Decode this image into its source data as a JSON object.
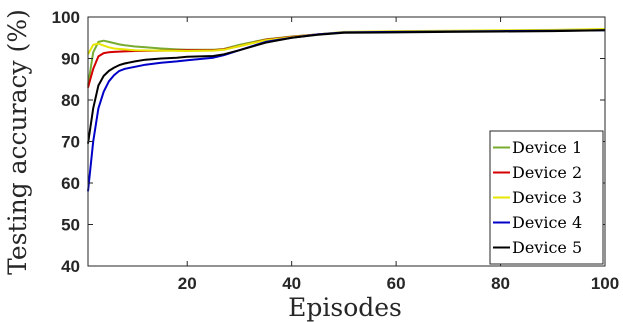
{
  "chart_data": {
    "type": "line",
    "xlabel": "Episodes",
    "ylabel": "Testing accuracy (%)",
    "xlim": [
      1,
      100
    ],
    "ylim": [
      40,
      100
    ],
    "xticks": [
      20,
      40,
      60,
      80,
      100
    ],
    "yticks": [
      40,
      50,
      60,
      70,
      80,
      90,
      100
    ],
    "grid": false,
    "legend_position": "bottom-right",
    "series": [
      {
        "name": "Device 1",
        "color": "#77ac30",
        "points": [
          [
            1,
            83.5
          ],
          [
            2,
            91.5
          ],
          [
            3,
            94.0
          ],
          [
            4,
            94.3
          ],
          [
            5,
            94.0
          ],
          [
            6,
            93.7
          ],
          [
            7,
            93.4
          ],
          [
            8,
            93.2
          ],
          [
            10,
            92.9
          ],
          [
            12,
            92.7
          ],
          [
            15,
            92.4
          ],
          [
            18,
            92.2
          ],
          [
            20,
            92.1
          ],
          [
            25,
            92.1
          ],
          [
            27,
            92.3
          ],
          [
            30,
            93.3
          ],
          [
            35,
            94.6
          ],
          [
            40,
            95.3
          ],
          [
            45,
            95.8
          ],
          [
            50,
            96.3
          ],
          [
            60,
            96.5
          ],
          [
            70,
            96.6
          ],
          [
            80,
            96.7
          ],
          [
            90,
            96.8
          ],
          [
            100,
            97.0
          ]
        ]
      },
      {
        "name": "Device 2",
        "color": "#d40000",
        "points": [
          [
            1,
            83.0
          ],
          [
            2,
            87.5
          ],
          [
            3,
            90.5
          ],
          [
            4,
            91.3
          ],
          [
            5,
            91.5
          ],
          [
            6,
            91.6
          ],
          [
            8,
            91.7
          ],
          [
            10,
            91.8
          ],
          [
            15,
            91.9
          ],
          [
            20,
            92.0
          ],
          [
            25,
            92.0
          ],
          [
            27,
            92.2
          ],
          [
            30,
            93.0
          ],
          [
            35,
            94.5
          ],
          [
            40,
            95.2
          ],
          [
            45,
            95.8
          ],
          [
            50,
            96.3
          ],
          [
            60,
            96.5
          ],
          [
            70,
            96.5
          ],
          [
            80,
            96.6
          ],
          [
            90,
            96.7
          ],
          [
            100,
            96.9
          ]
        ]
      },
      {
        "name": "Device 3",
        "color": "#e6e600",
        "points": [
          [
            1,
            91.0
          ],
          [
            2,
            93.3
          ],
          [
            3,
            93.6
          ],
          [
            4,
            93.1
          ],
          [
            5,
            92.7
          ],
          [
            6,
            92.4
          ],
          [
            8,
            92.2
          ],
          [
            10,
            92.0
          ],
          [
            15,
            91.9
          ],
          [
            20,
            91.8
          ],
          [
            25,
            91.9
          ],
          [
            27,
            92.1
          ],
          [
            30,
            93.0
          ],
          [
            35,
            94.4
          ],
          [
            40,
            95.1
          ],
          [
            45,
            95.8
          ],
          [
            50,
            96.4
          ],
          [
            60,
            96.6
          ],
          [
            70,
            96.7
          ],
          [
            80,
            96.8
          ],
          [
            90,
            96.9
          ],
          [
            100,
            97.1
          ]
        ]
      },
      {
        "name": "Device 4",
        "color": "#0000c8",
        "points": [
          [
            1,
            58.0
          ],
          [
            2,
            70.0
          ],
          [
            3,
            78.0
          ],
          [
            4,
            82.0
          ],
          [
            5,
            84.5
          ],
          [
            6,
            86.0
          ],
          [
            7,
            87.0
          ],
          [
            8,
            87.5
          ],
          [
            10,
            88.0
          ],
          [
            12,
            88.5
          ],
          [
            15,
            89.0
          ],
          [
            18,
            89.3
          ],
          [
            20,
            89.6
          ],
          [
            25,
            90.2
          ],
          [
            27,
            90.8
          ],
          [
            30,
            92.0
          ],
          [
            35,
            94.0
          ],
          [
            40,
            95.0
          ],
          [
            45,
            95.8
          ],
          [
            50,
            96.3
          ],
          [
            60,
            96.4
          ],
          [
            70,
            96.5
          ],
          [
            80,
            96.6
          ],
          [
            90,
            96.7
          ],
          [
            100,
            96.8
          ]
        ]
      },
      {
        "name": "Device 5",
        "color": "#000000",
        "points": [
          [
            1,
            69.5
          ],
          [
            2,
            78.0
          ],
          [
            3,
            83.5
          ],
          [
            4,
            85.8
          ],
          [
            5,
            87.0
          ],
          [
            6,
            87.8
          ],
          [
            7,
            88.4
          ],
          [
            8,
            88.8
          ],
          [
            10,
            89.3
          ],
          [
            12,
            89.7
          ],
          [
            15,
            90.0
          ],
          [
            18,
            90.2
          ],
          [
            20,
            90.4
          ],
          [
            25,
            90.6
          ],
          [
            27,
            91.0
          ],
          [
            30,
            92.0
          ],
          [
            35,
            93.8
          ],
          [
            40,
            95.0
          ],
          [
            45,
            95.7
          ],
          [
            50,
            96.2
          ],
          [
            60,
            96.3
          ],
          [
            70,
            96.4
          ],
          [
            80,
            96.5
          ],
          [
            90,
            96.6
          ],
          [
            100,
            96.8
          ]
        ]
      }
    ]
  }
}
